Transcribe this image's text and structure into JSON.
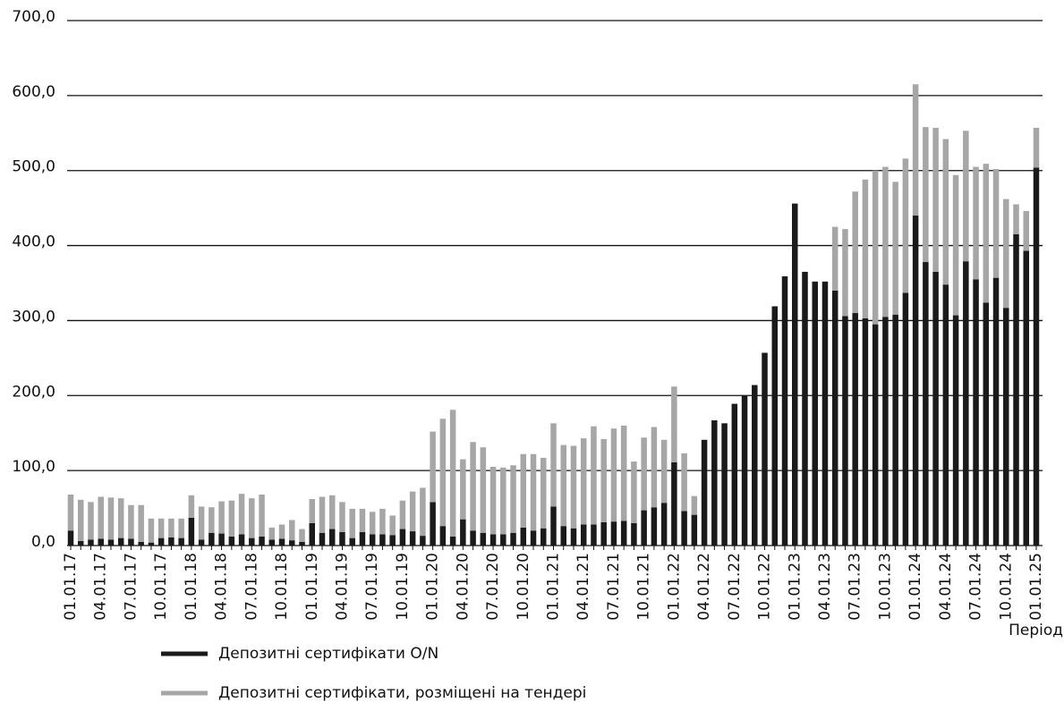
{
  "chart_data": {
    "type": "stacked_bar",
    "x_label": "Період",
    "categories": [
      "01.01.17",
      null,
      null,
      "04.01.17",
      null,
      null,
      "07.01.17",
      null,
      null,
      "10.01.17",
      null,
      null,
      "01.01.18",
      null,
      null,
      "04.01.18",
      null,
      null,
      "07.01.18",
      null,
      null,
      "10.01.18",
      null,
      null,
      "01.01.19",
      null,
      null,
      "04.01.19",
      null,
      null,
      "07.01.19",
      null,
      null,
      "10.01.19",
      null,
      null,
      "01.01.20",
      null,
      null,
      "04.01.20",
      null,
      null,
      "07.01.20",
      null,
      null,
      "10.01.20",
      null,
      null,
      "01.01.21",
      null,
      null,
      "04.01.21",
      null,
      null,
      "07.01.21",
      null,
      null,
      "10.01.21",
      null,
      null,
      "01.01.22",
      null,
      null,
      "04.01.22",
      null,
      null,
      "07.01.22",
      null,
      null,
      "10.01.22",
      null,
      null,
      "01.01.23",
      null,
      null,
      "04.01.23",
      null,
      null,
      "07.01.23",
      null,
      null,
      "10.01.23",
      null,
      null,
      "01.01.24",
      null,
      null,
      "04.01.24",
      null,
      null,
      "07.01.24",
      null,
      null,
      "10.01.24",
      null,
      null,
      "01.01.25"
    ],
    "series": [
      {
        "name": "Депозитні сертифікати O/N",
        "color": "#1a1a1a",
        "values": [
          20,
          6,
          8,
          9,
          8,
          10,
          9,
          5,
          4,
          10,
          11,
          10,
          37,
          8,
          17,
          16,
          12,
          15,
          10,
          12,
          8,
          9,
          7,
          5,
          30,
          17,
          22,
          18,
          10,
          18,
          15,
          15,
          14,
          22,
          19,
          13,
          58,
          26,
          12,
          35,
          20,
          17,
          15,
          15,
          17,
          24,
          20,
          23,
          52,
          26,
          23,
          28,
          28,
          31,
          32,
          33,
          30,
          47,
          51,
          57,
          111,
          46,
          41,
          141,
          167,
          163,
          189,
          200,
          214,
          257,
          319,
          359,
          456,
          365,
          352,
          352,
          340,
          306,
          310,
          303,
          295,
          305,
          308,
          337,
          440,
          378,
          365,
          348,
          307,
          379,
          355,
          324,
          357,
          317,
          415,
          393,
          504
        ]
      },
      {
        "name": "Депозитні сертифікати, розміщені на тендері",
        "color": "#a6a6a6",
        "values": [
          48,
          55,
          50,
          56,
          56,
          53,
          45,
          49,
          32,
          26,
          25,
          26,
          30,
          44,
          34,
          43,
          48,
          54,
          53,
          56,
          16,
          19,
          27,
          17,
          32,
          48,
          45,
          40,
          39,
          31,
          30,
          34,
          26,
          38,
          53,
          64,
          94,
          143,
          169,
          80,
          118,
          114,
          90,
          89,
          90,
          98,
          102,
          94,
          111,
          108,
          110,
          115,
          131,
          111,
          124,
          127,
          82,
          97,
          107,
          84,
          101,
          77,
          25,
          0,
          0,
          0,
          0,
          0,
          0,
          0,
          0,
          0,
          0,
          0,
          0,
          0,
          85,
          116,
          162,
          185,
          205,
          200,
          177,
          179,
          175,
          180,
          192,
          194,
          187,
          174,
          150,
          185,
          145,
          145,
          40,
          53,
          53
        ]
      }
    ],
    "ylim": [
      0,
      700
    ],
    "yticks": [
      {
        "value": 0,
        "label": "0,0"
      },
      {
        "value": 100,
        "label": "100,0"
      },
      {
        "value": 200,
        "label": "200,0"
      },
      {
        "value": 300,
        "label": "300,0"
      },
      {
        "value": 400,
        "label": "400,0"
      },
      {
        "value": 500,
        "label": "500,0"
      },
      {
        "value": 600,
        "label": "600,0"
      },
      {
        "value": 700,
        "label": "700,0"
      }
    ],
    "grid": true
  }
}
